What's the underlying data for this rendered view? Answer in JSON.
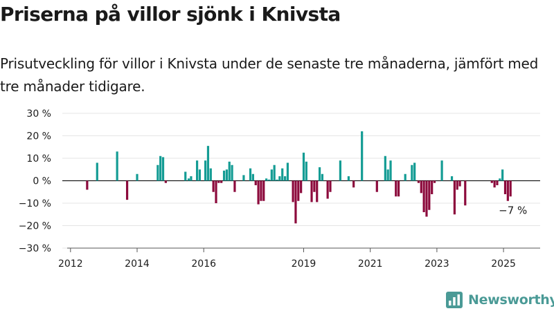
{
  "header": {
    "title": "Priserna på villor sjönk i Knivsta",
    "subtitle": "Prisutveckling för villor i Knivsta under de senaste tre månaderna, jämfört med tre månader tidigare."
  },
  "brand": {
    "name": "Newsworthy",
    "icon": "bar-chart-logo-icon"
  },
  "colors": {
    "positive": "#149c94",
    "negative": "#8c0a3c",
    "grid": "#e4e4e4",
    "zero": "#1a1a1a"
  },
  "chart_data": {
    "type": "bar",
    "title": "",
    "xlabel": "",
    "ylabel": "",
    "ylim": [
      -30,
      30
    ],
    "yticks": [
      30,
      20,
      10,
      0,
      -10,
      -20,
      -30
    ],
    "ytick_labels": [
      "30 %",
      "20 %",
      "10 %",
      "0 %",
      "−10 %",
      "−20 %",
      "−30 %"
    ],
    "xticks": [
      {
        "label": "2012",
        "x": 2012
      },
      {
        "label": "2014",
        "x": 2014
      },
      {
        "label": "2016",
        "x": 2016
      },
      {
        "label": "2019",
        "x": 2019
      },
      {
        "label": "2021",
        "x": 2021
      },
      {
        "label": "2023",
        "x": 2023
      },
      {
        "label": "2025",
        "x": 2025
      }
    ],
    "xlim": [
      2011.9,
      2026.1
    ],
    "grid": true,
    "annotation": {
      "text": "−7 %",
      "x": 2025.2,
      "y": -7
    },
    "bars": [
      {
        "x": 2012.5,
        "y": -4
      },
      {
        "x": 2012.8,
        "y": 8
      },
      {
        "x": 2013.4,
        "y": 13
      },
      {
        "x": 2013.7,
        "y": -8.5
      },
      {
        "x": 2014.0,
        "y": 3
      },
      {
        "x": 2014.62,
        "y": 7
      },
      {
        "x": 2014.7,
        "y": 11
      },
      {
        "x": 2014.78,
        "y": 10.5
      },
      {
        "x": 2014.86,
        "y": -1
      },
      {
        "x": 2015.45,
        "y": 4
      },
      {
        "x": 2015.55,
        "y": 1
      },
      {
        "x": 2015.62,
        "y": 2
      },
      {
        "x": 2015.8,
        "y": 9
      },
      {
        "x": 2015.88,
        "y": 5
      },
      {
        "x": 2016.05,
        "y": 9
      },
      {
        "x": 2016.13,
        "y": 15.5
      },
      {
        "x": 2016.21,
        "y": 5.5
      },
      {
        "x": 2016.29,
        "y": -5
      },
      {
        "x": 2016.37,
        "y": -10
      },
      {
        "x": 2016.45,
        "y": -1
      },
      {
        "x": 2016.53,
        "y": -1
      },
      {
        "x": 2016.61,
        "y": 4.5
      },
      {
        "x": 2016.69,
        "y": 5
      },
      {
        "x": 2016.77,
        "y": 8.5
      },
      {
        "x": 2016.85,
        "y": 7
      },
      {
        "x": 2016.93,
        "y": -5
      },
      {
        "x": 2017.2,
        "y": 2.5
      },
      {
        "x": 2017.4,
        "y": 5.5
      },
      {
        "x": 2017.48,
        "y": 3
      },
      {
        "x": 2017.56,
        "y": -2
      },
      {
        "x": 2017.64,
        "y": -10.5
      },
      {
        "x": 2017.72,
        "y": -9
      },
      {
        "x": 2017.8,
        "y": -9
      },
      {
        "x": 2017.88,
        "y": 1
      },
      {
        "x": 2017.96,
        "y": 0.5
      },
      {
        "x": 2018.04,
        "y": 5
      },
      {
        "x": 2018.12,
        "y": 7
      },
      {
        "x": 2018.2,
        "y": 0.5
      },
      {
        "x": 2018.28,
        "y": 2
      },
      {
        "x": 2018.36,
        "y": 5.5
      },
      {
        "x": 2018.44,
        "y": 2
      },
      {
        "x": 2018.52,
        "y": 8
      },
      {
        "x": 2018.68,
        "y": -9.5
      },
      {
        "x": 2018.76,
        "y": -19
      },
      {
        "x": 2018.84,
        "y": -9
      },
      {
        "x": 2018.92,
        "y": -5.5
      },
      {
        "x": 2019.0,
        "y": 12.5
      },
      {
        "x": 2019.08,
        "y": 8.5
      },
      {
        "x": 2019.24,
        "y": -9.5
      },
      {
        "x": 2019.32,
        "y": -5
      },
      {
        "x": 2019.4,
        "y": -9.5
      },
      {
        "x": 2019.48,
        "y": 6
      },
      {
        "x": 2019.56,
        "y": 3
      },
      {
        "x": 2019.72,
        "y": -8
      },
      {
        "x": 2019.8,
        "y": -5
      },
      {
        "x": 2020.1,
        "y": 9
      },
      {
        "x": 2020.35,
        "y": 2
      },
      {
        "x": 2020.5,
        "y": -3
      },
      {
        "x": 2020.75,
        "y": 22
      },
      {
        "x": 2021.2,
        "y": -5
      },
      {
        "x": 2021.45,
        "y": 11
      },
      {
        "x": 2021.53,
        "y": 5
      },
      {
        "x": 2021.61,
        "y": 9
      },
      {
        "x": 2021.77,
        "y": -7
      },
      {
        "x": 2021.85,
        "y": -7
      },
      {
        "x": 2022.05,
        "y": 3
      },
      {
        "x": 2022.25,
        "y": 7
      },
      {
        "x": 2022.33,
        "y": 8
      },
      {
        "x": 2022.45,
        "y": -1
      },
      {
        "x": 2022.53,
        "y": -5.5
      },
      {
        "x": 2022.61,
        "y": -14
      },
      {
        "x": 2022.69,
        "y": -16
      },
      {
        "x": 2022.77,
        "y": -13
      },
      {
        "x": 2022.85,
        "y": -6
      },
      {
        "x": 2022.93,
        "y": -1
      },
      {
        "x": 2023.15,
        "y": 9
      },
      {
        "x": 2023.45,
        "y": 2
      },
      {
        "x": 2023.53,
        "y": -15
      },
      {
        "x": 2023.61,
        "y": -4
      },
      {
        "x": 2023.69,
        "y": -2.5
      },
      {
        "x": 2023.85,
        "y": -11
      },
      {
        "x": 2024.65,
        "y": -1
      },
      {
        "x": 2024.73,
        "y": -3
      },
      {
        "x": 2024.81,
        "y": -2
      },
      {
        "x": 2024.89,
        "y": 1
      },
      {
        "x": 2024.97,
        "y": 5
      },
      {
        "x": 2025.05,
        "y": -6
      },
      {
        "x": 2025.13,
        "y": -9
      },
      {
        "x": 2025.21,
        "y": -7
      }
    ]
  }
}
